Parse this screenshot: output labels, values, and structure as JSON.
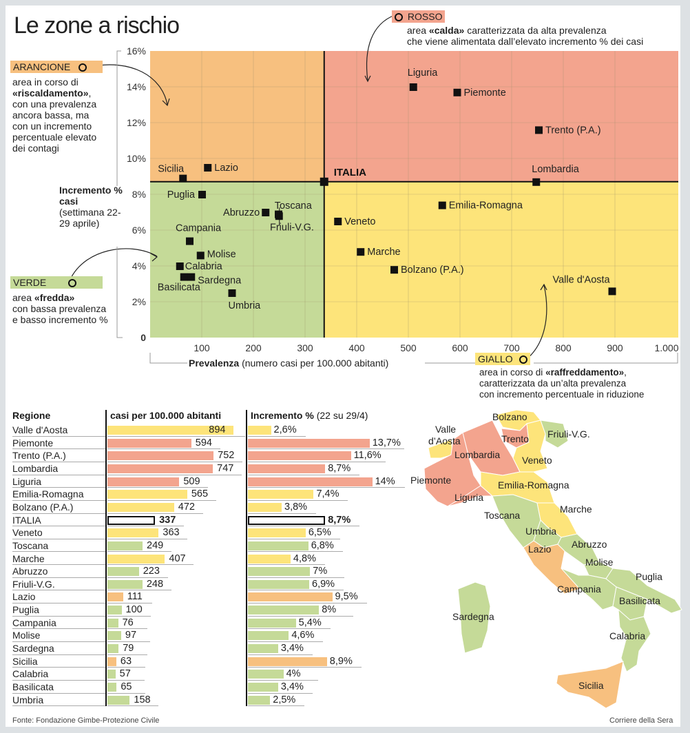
{
  "title": "Le zone a rischio",
  "colors": {
    "rosso": "#f3a48e",
    "arancione": "#f7c07f",
    "verde": "#c5da98",
    "giallo": "#fde47a",
    "line": "#111111",
    "grid": "#9c8f6a"
  },
  "zones": {
    "arancione": {
      "tag": "ARANCIONE",
      "desc_pre": "area in corso di",
      "desc_bold": "«riscaldamento»",
      "desc_post": ", con una prevalenza ancora bassa, ma con un incremento percentuale elevato dei contagi"
    },
    "rosso": {
      "tag": "ROSSO",
      "desc_pre": "area",
      "desc_bold": "«calda»",
      "desc_post": "caratterizzata da alta prevalenza",
      "desc_line2": "che viene alimentata dall’elevato incremento % dei casi"
    },
    "verde": {
      "tag": "VERDE",
      "desc_pre": "area",
      "desc_bold": "«fredda»",
      "desc_post": "con bassa prevalenza e basso incremento %"
    },
    "giallo": {
      "tag": "GIALLO",
      "desc_pre": "area in corso di",
      "desc_bold": "«raffreddamento»",
      "desc_post": ",",
      "desc_line2": "caratterizzata da un’alta prevalenza",
      "desc_line3": "con incremento percentuale in riduzione"
    }
  },
  "chart_data": [
    {
      "type": "scatter",
      "title": "Le zone a rischio",
      "xlabel_bold": "Prevalenza",
      "xlabel_rest": "(numero casi per 100.000 abitanti)",
      "ylabel_bold": "Incremento % casi",
      "ylabel_rest": "(settimana 22-29 aprile)",
      "xlim": [
        0,
        1000
      ],
      "ylim": [
        0,
        16
      ],
      "grid": true,
      "x_ticks": [
        100,
        200,
        300,
        400,
        500,
        600,
        700,
        800,
        900,
        1000
      ],
      "x_tick_labels": [
        "100",
        "200",
        "300",
        "400",
        "500",
        "600",
        "700",
        "800",
        "900",
        "1.000"
      ],
      "y_ticks": [
        0,
        2,
        4,
        6,
        8,
        10,
        12,
        14,
        16
      ],
      "y_tick_labels": [
        "0",
        "2%",
        "4%",
        "6%",
        "8%",
        "10%",
        "12%",
        "14%",
        "16%"
      ],
      "reference": {
        "name": "ITALIA",
        "x": 337,
        "y": 8.7
      },
      "points": [
        {
          "name": "Valle d'Aosta",
          "x": 894,
          "y": 2.6
        },
        {
          "name": "Piemonte",
          "x": 594,
          "y": 13.7
        },
        {
          "name": "Trento (P.A.)",
          "x": 752,
          "y": 11.6
        },
        {
          "name": "Lombardia",
          "x": 747,
          "y": 8.7
        },
        {
          "name": "Liguria",
          "x": 509,
          "y": 14
        },
        {
          "name": "Emilia-Romagna",
          "x": 565,
          "y": 7.4
        },
        {
          "name": "Bolzano (P.A.)",
          "x": 472,
          "y": 3.8
        },
        {
          "name": "Veneto",
          "x": 363,
          "y": 6.5
        },
        {
          "name": "Toscana",
          "x": 249,
          "y": 6.8
        },
        {
          "name": "Marche",
          "x": 407,
          "y": 4.8
        },
        {
          "name": "Abruzzo",
          "x": 223,
          "y": 7
        },
        {
          "name": "Friuli-V.G.",
          "x": 248,
          "y": 6.9
        },
        {
          "name": "Lazio",
          "x": 111,
          "y": 9.5
        },
        {
          "name": "Puglia",
          "x": 100,
          "y": 8
        },
        {
          "name": "Campania",
          "x": 76,
          "y": 5.4
        },
        {
          "name": "Molise",
          "x": 97,
          "y": 4.6
        },
        {
          "name": "Sardegna",
          "x": 79,
          "y": 3.4
        },
        {
          "name": "Sicilia",
          "x": 63,
          "y": 8.9
        },
        {
          "name": "Calabria",
          "x": 57,
          "y": 4
        },
        {
          "name": "Basilicata",
          "x": 65,
          "y": 3.4
        },
        {
          "name": "Umbria",
          "x": 158,
          "y": 2.5
        }
      ]
    },
    {
      "type": "bar",
      "orientation": "horizontal",
      "header_region": "Regione",
      "header_casi": "casi per 100.000 abitanti",
      "header_incr_bold": "Incremento %",
      "header_incr_rest": "(22 su 29/4)",
      "rows": [
        {
          "region": "Valle d'Aosta",
          "casi": 894,
          "casi_label": "894",
          "incr": 2.6,
          "incr_label": "2,6%",
          "zone": "giallo"
        },
        {
          "region": "Piemonte",
          "casi": 594,
          "casi_label": "594",
          "incr": 13.7,
          "incr_label": "13,7%",
          "zone": "rosso"
        },
        {
          "region": "Trento (P.A.)",
          "casi": 752,
          "casi_label": "752",
          "incr": 11.6,
          "incr_label": "11,6%",
          "zone": "rosso"
        },
        {
          "region": "Lombardia",
          "casi": 747,
          "casi_label": "747",
          "incr": 8.7,
          "incr_label": "8,7%",
          "zone": "rosso"
        },
        {
          "region": "Liguria",
          "casi": 509,
          "casi_label": "509",
          "incr": 14,
          "incr_label": "14%",
          "zone": "rosso"
        },
        {
          "region": "Emilia-Romagna",
          "casi": 565,
          "casi_label": "565",
          "incr": 7.4,
          "incr_label": "7,4%",
          "zone": "giallo"
        },
        {
          "region": "Bolzano (P.A.)",
          "casi": 472,
          "casi_label": "472",
          "incr": 3.8,
          "incr_label": "3,8%",
          "zone": "giallo"
        },
        {
          "region": "ITALIA",
          "casi": 337,
          "casi_label": "337",
          "incr": 8.7,
          "incr_label": "8,7%",
          "zone": "italia"
        },
        {
          "region": "Veneto",
          "casi": 363,
          "casi_label": "363",
          "incr": 6.5,
          "incr_label": "6,5%",
          "zone": "giallo"
        },
        {
          "region": "Toscana",
          "casi": 249,
          "casi_label": "249",
          "incr": 6.8,
          "incr_label": "6,8%",
          "zone": "verde"
        },
        {
          "region": "Marche",
          "casi": 407,
          "casi_label": "407",
          "incr": 4.8,
          "incr_label": "4,8%",
          "zone": "giallo"
        },
        {
          "region": "Abruzzo",
          "casi": 223,
          "casi_label": "223",
          "incr": 7,
          "incr_label": "7%",
          "zone": "verde"
        },
        {
          "region": "Friuli-V.G.",
          "casi": 248,
          "casi_label": "248",
          "incr": 6.9,
          "incr_label": "6,9%",
          "zone": "verde"
        },
        {
          "region": "Lazio",
          "casi": 111,
          "casi_label": "111",
          "incr": 9.5,
          "incr_label": "9,5%",
          "zone": "arancione"
        },
        {
          "region": "Puglia",
          "casi": 100,
          "casi_label": "100",
          "incr": 8,
          "incr_label": "8%",
          "zone": "verde"
        },
        {
          "region": "Campania",
          "casi": 76,
          "casi_label": "76",
          "incr": 5.4,
          "incr_label": "5,4%",
          "zone": "verde"
        },
        {
          "region": "Molise",
          "casi": 97,
          "casi_label": "97",
          "incr": 4.6,
          "incr_label": "4,6%",
          "zone": "verde"
        },
        {
          "region": "Sardegna",
          "casi": 79,
          "casi_label": "79",
          "incr": 3.4,
          "incr_label": "3,4%",
          "zone": "verde"
        },
        {
          "region": "Sicilia",
          "casi": 63,
          "casi_label": "63",
          "incr": 8.9,
          "incr_label": "8,9%",
          "zone": "arancione"
        },
        {
          "region": "Calabria",
          "casi": 57,
          "casi_label": "57",
          "incr": 4,
          "incr_label": "4%",
          "zone": "verde"
        },
        {
          "region": "Basilicata",
          "casi": 65,
          "casi_label": "65",
          "incr": 3.4,
          "incr_label": "3,4%",
          "zone": "verde"
        },
        {
          "region": "Umbria",
          "casi": 158,
          "casi_label": "158",
          "incr": 2.5,
          "incr_label": "2,5%",
          "zone": "verde"
        }
      ]
    }
  ],
  "map": {
    "labels": [
      "Bolzano",
      "Valle d’Aosta",
      "Trento",
      "Friuli-V.G.",
      "Lombardia",
      "Veneto",
      "Piemonte",
      "Emilia-Romagna",
      "Liguria",
      "Marche",
      "Toscana",
      "Umbria",
      "Abruzzo",
      "Lazio",
      "Molise",
      "Puglia",
      "Campania",
      "Basilicata",
      "Sardegna",
      "Calabria",
      "Sicilia"
    ]
  },
  "footer": {
    "source": "Fonte: Fondazione Gimbe-Protezione Civile",
    "credit": "Corriere della Sera"
  }
}
